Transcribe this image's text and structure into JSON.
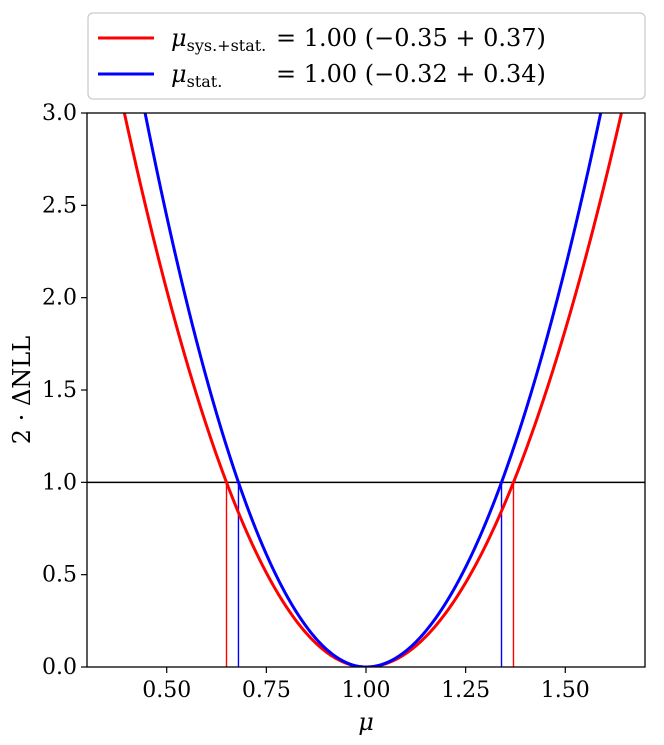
{
  "chart_data": {
    "type": "line",
    "xlabel": "μ",
    "ylabel": "2 · ΔNLL",
    "xlim": [
      0.3,
      1.7
    ],
    "ylim": [
      0.0,
      3.0
    ],
    "x_ticks": [
      0.5,
      0.75,
      1.0,
      1.25,
      1.5
    ],
    "x_tick_labels": [
      "0.50",
      "0.75",
      "1.00",
      "1.25",
      "1.50"
    ],
    "y_ticks": [
      0.0,
      0.5,
      1.0,
      1.5,
      2.0,
      2.5,
      3.0
    ],
    "y_tick_labels": [
      "0.0",
      "0.5",
      "1.0",
      "1.5",
      "2.0",
      "2.5",
      "3.0"
    ],
    "grid": false,
    "legend_position": "above-plot",
    "reference_line_y": 1.0,
    "best_fit": 1.0,
    "series": [
      {
        "name": "μsys.+stat.",
        "legend_symbol": "μ",
        "legend_subscript": "sys.+stat.",
        "legend_value": "= 1.00 (−0.35  + 0.37)",
        "color": "#ff0000",
        "err_down": 0.35,
        "err_up": 0.37,
        "interval_x": [
          0.65,
          1.37
        ]
      },
      {
        "name": "μstat.",
        "legend_symbol": "μ",
        "legend_subscript": "stat.",
        "legend_value": "= 1.00 (−0.32  + 0.34)",
        "color": "#0000ff",
        "err_down": 0.32,
        "err_up": 0.34,
        "interval_x": [
          0.68,
          1.34
        ]
      }
    ]
  }
}
